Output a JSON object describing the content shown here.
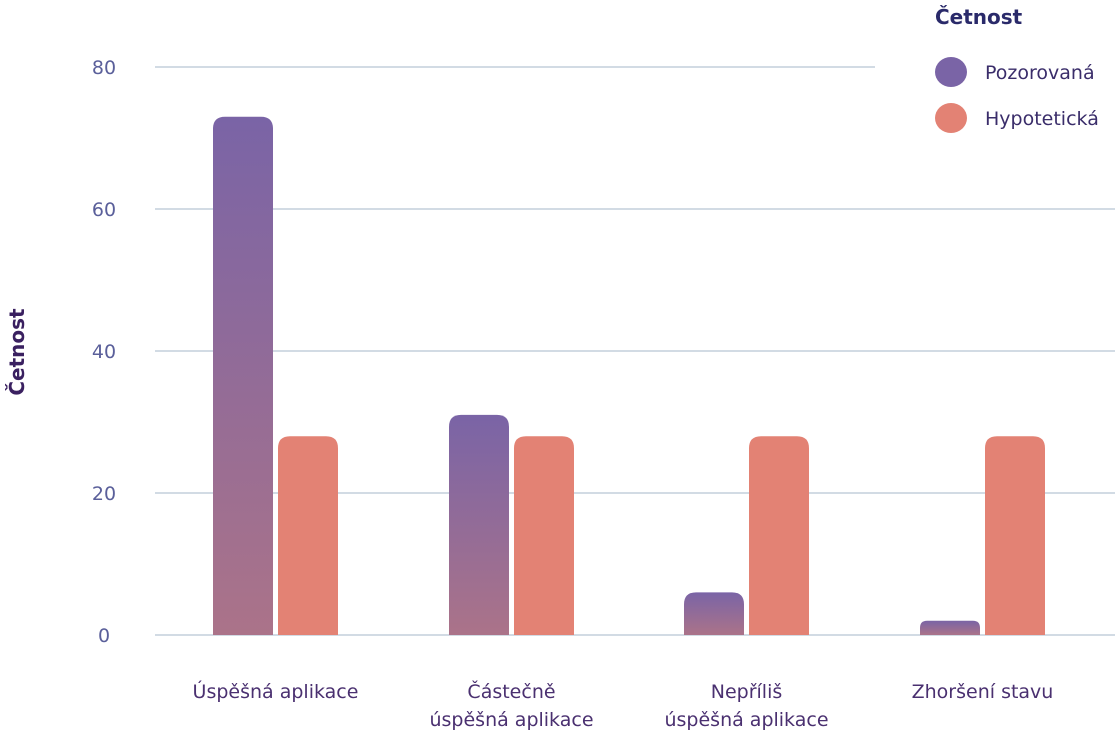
{
  "chart_data": {
    "type": "bar",
    "title": "",
    "xlabel": "",
    "ylabel": "Četnost",
    "ylim": [
      0,
      80
    ],
    "yticks": [
      0,
      20,
      40,
      60,
      80
    ],
    "grid": true,
    "legend_title": "Četnost",
    "legend_position": "top-right",
    "categories": [
      [
        "Úspěšná aplikace"
      ],
      [
        "Částečně",
        "úspěšná aplikace"
      ],
      [
        "Nepříliš",
        "úspěšná aplikace"
      ],
      [
        "Zhoršení stavu"
      ]
    ],
    "series": [
      {
        "name": "Pozorovaná",
        "values": [
          73,
          31,
          6,
          2
        ],
        "color": "#7a64a6"
      },
      {
        "name": "Hypotetická",
        "values": [
          28,
          28,
          28,
          28
        ],
        "color": "#e38274"
      }
    ]
  }
}
